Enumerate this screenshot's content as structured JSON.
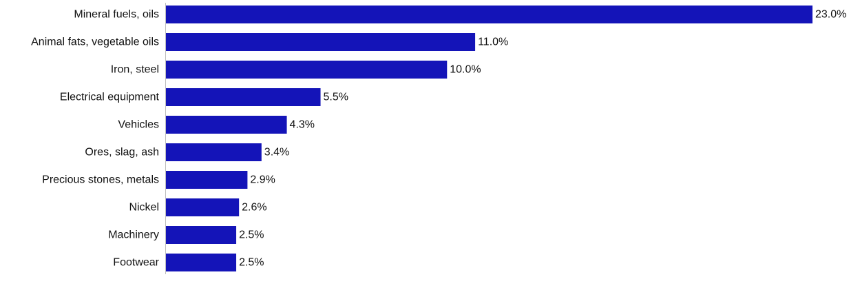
{
  "chart_data": {
    "type": "bar",
    "orientation": "horizontal",
    "categories": [
      "Mineral fuels, oils",
      "Animal fats, vegetable oils",
      "Iron, steel",
      "Electrical equipment",
      "Vehicles",
      "Ores, slag, ash",
      "Precious stones, metals",
      "Nickel",
      "Machinery",
      "Footwear"
    ],
    "values": [
      23.0,
      11.0,
      10.0,
      5.5,
      4.3,
      3.4,
      2.9,
      2.6,
      2.5,
      2.5
    ],
    "value_labels": [
      "23.0%",
      "11.0%",
      "10.0%",
      "5.5%",
      "4.3%",
      "3.4%",
      "2.9%",
      "2.6%",
      "2.5%",
      "2.5%"
    ],
    "title": "",
    "xlabel": "",
    "ylabel": "",
    "xlim": [
      0,
      23.0
    ],
    "grid": false,
    "legend": "none",
    "bar_color": "#1414b8"
  }
}
